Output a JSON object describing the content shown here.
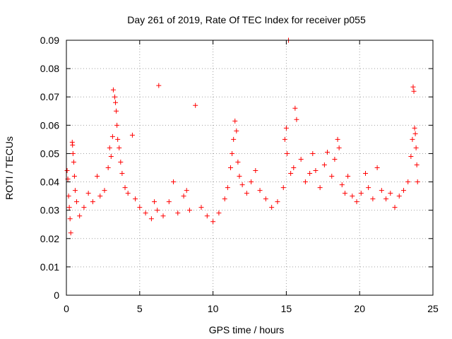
{
  "chart_data": {
    "type": "scatter",
    "title": "Day 261 of 2019, Rate Of TEC Index for receiver p055",
    "xlabel": "GPS time / hours",
    "ylabel": "ROTI / TECUs",
    "xlim": [
      0,
      25
    ],
    "ylim": [
      0,
      0.09
    ],
    "xticks": [
      0,
      5,
      10,
      15,
      20,
      25
    ],
    "xtick_labels": [
      "0",
      "5",
      "10",
      "15",
      "20",
      "25"
    ],
    "yticks": [
      0,
      0.01,
      0.02,
      0.03,
      0.04,
      0.05,
      0.06,
      0.07,
      0.08,
      0.09
    ],
    "ytick_labels": [
      "0",
      "0.01",
      "0.02",
      "0.03",
      "0.04",
      "0.05",
      "0.06",
      "0.07",
      "0.08",
      "0.09"
    ],
    "grid": true,
    "marker": "+",
    "color": "#ff0000",
    "series": [
      {
        "name": "ROTI p055",
        "points": [
          [
            0.05,
            0.044
          ],
          [
            0.1,
            0.041
          ],
          [
            0.15,
            0.035
          ],
          [
            0.2,
            0.031
          ],
          [
            0.25,
            0.027
          ],
          [
            0.3,
            0.022
          ],
          [
            0.4,
            0.054
          ],
          [
            0.42,
            0.053
          ],
          [
            0.45,
            0.05
          ],
          [
            0.5,
            0.047
          ],
          [
            0.55,
            0.042
          ],
          [
            0.6,
            0.037
          ],
          [
            0.7,
            0.033
          ],
          [
            0.9,
            0.028
          ],
          [
            1.2,
            0.031
          ],
          [
            1.5,
            0.036
          ],
          [
            1.8,
            0.033
          ],
          [
            2.1,
            0.042
          ],
          [
            2.3,
            0.035
          ],
          [
            2.6,
            0.037
          ],
          [
            2.85,
            0.045
          ],
          [
            2.95,
            0.052
          ],
          [
            3.05,
            0.049
          ],
          [
            3.15,
            0.056
          ],
          [
            3.2,
            0.0725
          ],
          [
            3.3,
            0.07
          ],
          [
            3.35,
            0.068
          ],
          [
            3.4,
            0.065
          ],
          [
            3.45,
            0.06
          ],
          [
            3.5,
            0.055
          ],
          [
            3.6,
            0.052
          ],
          [
            3.7,
            0.047
          ],
          [
            3.8,
            0.043
          ],
          [
            4.0,
            0.038
          ],
          [
            4.2,
            0.036
          ],
          [
            4.5,
            0.0565
          ],
          [
            4.7,
            0.034
          ],
          [
            5.0,
            0.031
          ],
          [
            5.4,
            0.029
          ],
          [
            5.8,
            0.027
          ],
          [
            6.0,
            0.033
          ],
          [
            6.2,
            0.03
          ],
          [
            6.3,
            0.074
          ],
          [
            6.6,
            0.028
          ],
          [
            7.0,
            0.033
          ],
          [
            7.3,
            0.04
          ],
          [
            7.6,
            0.029
          ],
          [
            8.0,
            0.035
          ],
          [
            8.2,
            0.037
          ],
          [
            8.4,
            0.03
          ],
          [
            8.8,
            0.067
          ],
          [
            9.2,
            0.031
          ],
          [
            9.6,
            0.028
          ],
          [
            10.0,
            0.026
          ],
          [
            10.4,
            0.029
          ],
          [
            10.8,
            0.034
          ],
          [
            11.0,
            0.038
          ],
          [
            11.2,
            0.045
          ],
          [
            11.3,
            0.05
          ],
          [
            11.4,
            0.055
          ],
          [
            11.5,
            0.0615
          ],
          [
            11.6,
            0.058
          ],
          [
            11.7,
            0.047
          ],
          [
            11.8,
            0.042
          ],
          [
            12.0,
            0.039
          ],
          [
            12.3,
            0.036
          ],
          [
            12.6,
            0.04
          ],
          [
            12.9,
            0.044
          ],
          [
            13.2,
            0.037
          ],
          [
            13.6,
            0.034
          ],
          [
            14.0,
            0.031
          ],
          [
            14.4,
            0.033
          ],
          [
            14.8,
            0.038
          ],
          [
            14.9,
            0.055
          ],
          [
            15.0,
            0.059
          ],
          [
            15.05,
            0.05
          ],
          [
            15.15,
            0.09
          ],
          [
            15.3,
            0.043
          ],
          [
            15.5,
            0.045
          ],
          [
            15.6,
            0.066
          ],
          [
            15.7,
            0.062
          ],
          [
            16.0,
            0.048
          ],
          [
            16.3,
            0.04
          ],
          [
            16.6,
            0.043
          ],
          [
            16.8,
            0.05
          ],
          [
            17.0,
            0.044
          ],
          [
            17.3,
            0.038
          ],
          [
            17.6,
            0.046
          ],
          [
            17.8,
            0.0505
          ],
          [
            18.1,
            0.042
          ],
          [
            18.3,
            0.048
          ],
          [
            18.5,
            0.055
          ],
          [
            18.6,
            0.052
          ],
          [
            18.8,
            0.039
          ],
          [
            19.0,
            0.036
          ],
          [
            19.2,
            0.042
          ],
          [
            19.5,
            0.035
          ],
          [
            19.8,
            0.033
          ],
          [
            20.1,
            0.036
          ],
          [
            20.4,
            0.043
          ],
          [
            20.6,
            0.038
          ],
          [
            20.9,
            0.034
          ],
          [
            21.2,
            0.045
          ],
          [
            21.5,
            0.037
          ],
          [
            21.8,
            0.034
          ],
          [
            22.1,
            0.036
          ],
          [
            22.4,
            0.031
          ],
          [
            22.7,
            0.035
          ],
          [
            23.0,
            0.037
          ],
          [
            23.3,
            0.04
          ],
          [
            23.5,
            0.049
          ],
          [
            23.6,
            0.055
          ],
          [
            23.65,
            0.0735
          ],
          [
            23.7,
            0.072
          ],
          [
            23.75,
            0.059
          ],
          [
            23.8,
            0.057
          ],
          [
            23.85,
            0.052
          ],
          [
            23.9,
            0.046
          ],
          [
            23.95,
            0.04
          ]
        ]
      }
    ]
  }
}
